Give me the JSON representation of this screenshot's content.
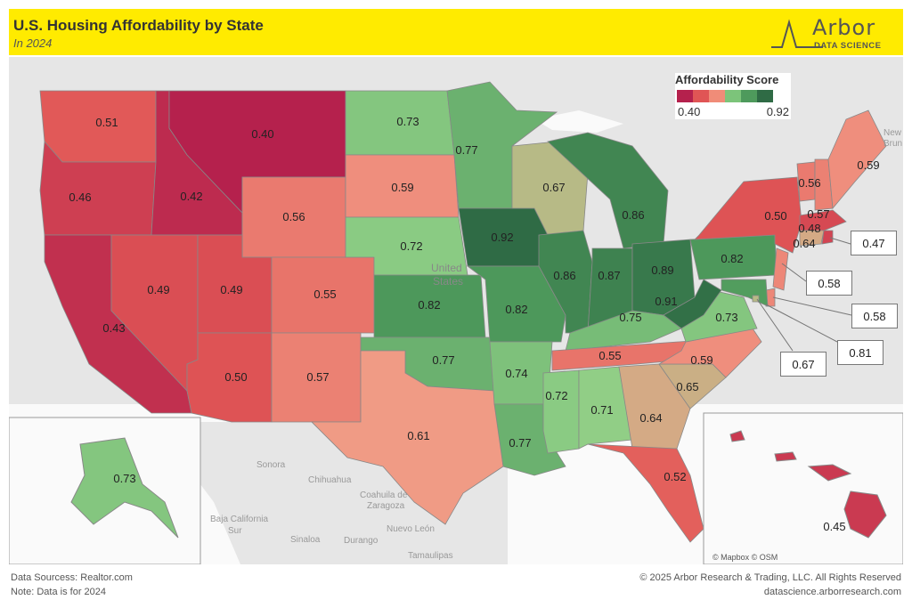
{
  "header": {
    "title": "U.S. Housing Affordability by State",
    "subtitle": "In 2024",
    "logo_name": "Arbor",
    "logo_sub": "DATA SCIENCE"
  },
  "legend": {
    "title": "Affordability Score",
    "min_label": "0.40",
    "max_label": "0.92",
    "colors": [
      "#b5214d",
      "#e05555",
      "#f08c78",
      "#7cc47a",
      "#4e9a5c",
      "#2f6b45"
    ]
  },
  "footer": {
    "sources": "Data Sourcess: Realtor.com",
    "note": "Note: Data is for 2024",
    "copyright": "© 2025 Arbor Research & Trading, LLC. All Rights Reserved",
    "website": "datascience.arborresearch.com"
  },
  "map_labels": {
    "attribution": "© Mapbox © OSM",
    "united_states": "United",
    "united_states_2": "States",
    "sonora": "Sonora",
    "chihuahua": "Chihuahua",
    "coahuila": "Coahuila de",
    "zaragoza": "Zaragoza",
    "baja": "Baja California",
    "sur": "Sur",
    "sinaloa": "Sinaloa",
    "durango": "Durango",
    "nuevo_leon": "Nuevo León",
    "tamaulipas": "Tamaulipas",
    "new_bruns": "New",
    "new_bruns_2": "Brun"
  },
  "chart_data": {
    "type": "choropleth",
    "title": "U.S. Housing Affordability by State",
    "subtitle": "In 2024",
    "legend_title": "Affordability Score",
    "range": [
      0.4,
      0.92
    ],
    "states": [
      {
        "state": "Washington",
        "value": 0.51
      },
      {
        "state": "Oregon",
        "value": 0.46
      },
      {
        "state": "California",
        "value": 0.43
      },
      {
        "state": "Idaho",
        "value": 0.42
      },
      {
        "state": "Montana",
        "value": 0.4
      },
      {
        "state": "Wyoming",
        "value": 0.56
      },
      {
        "state": "Nevada",
        "value": 0.49
      },
      {
        "state": "Utah",
        "value": 0.49
      },
      {
        "state": "Colorado",
        "value": 0.55
      },
      {
        "state": "Arizona",
        "value": 0.5
      },
      {
        "state": "New Mexico",
        "value": 0.57
      },
      {
        "state": "North Dakota",
        "value": 0.73
      },
      {
        "state": "South Dakota",
        "value": 0.59
      },
      {
        "state": "Nebraska",
        "value": 0.72
      },
      {
        "state": "Kansas",
        "value": 0.82
      },
      {
        "state": "Oklahoma",
        "value": 0.77
      },
      {
        "state": "Texas",
        "value": 0.61
      },
      {
        "state": "Minnesota",
        "value": 0.77
      },
      {
        "state": "Iowa",
        "value": 0.92
      },
      {
        "state": "Missouri",
        "value": 0.82
      },
      {
        "state": "Arkansas",
        "value": 0.74
      },
      {
        "state": "Louisiana",
        "value": 0.77
      },
      {
        "state": "Wisconsin",
        "value": 0.67
      },
      {
        "state": "Illinois",
        "value": 0.86
      },
      {
        "state": "Michigan",
        "value": 0.86
      },
      {
        "state": "Indiana",
        "value": 0.87
      },
      {
        "state": "Ohio",
        "value": 0.89
      },
      {
        "state": "Kentucky",
        "value": 0.75
      },
      {
        "state": "Tennessee",
        "value": 0.55
      },
      {
        "state": "Mississippi",
        "value": 0.72
      },
      {
        "state": "Alabama",
        "value": 0.71
      },
      {
        "state": "Georgia",
        "value": 0.64
      },
      {
        "state": "Florida",
        "value": 0.52
      },
      {
        "state": "South Carolina",
        "value": 0.65
      },
      {
        "state": "North Carolina",
        "value": 0.59
      },
      {
        "state": "Virginia",
        "value": 0.73
      },
      {
        "state": "West Virginia",
        "value": 0.91
      },
      {
        "state": "Pennsylvania",
        "value": 0.82
      },
      {
        "state": "New York",
        "value": 0.5
      },
      {
        "state": "Vermont",
        "value": 0.56
      },
      {
        "state": "New Hampshire",
        "value": 0.57
      },
      {
        "state": "Maine",
        "value": 0.59
      },
      {
        "state": "Massachusetts",
        "value": 0.48
      },
      {
        "state": "Connecticut",
        "value": 0.64
      },
      {
        "state": "Rhode Island",
        "value": 0.47
      },
      {
        "state": "New Jersey",
        "value": 0.58
      },
      {
        "state": "Delaware",
        "value": 0.58
      },
      {
        "state": "Maryland",
        "value": 0.81
      },
      {
        "state": "District of Columbia",
        "value": 0.67
      },
      {
        "state": "Alaska",
        "value": 0.73
      },
      {
        "state": "Hawaii",
        "value": 0.45
      }
    ]
  }
}
